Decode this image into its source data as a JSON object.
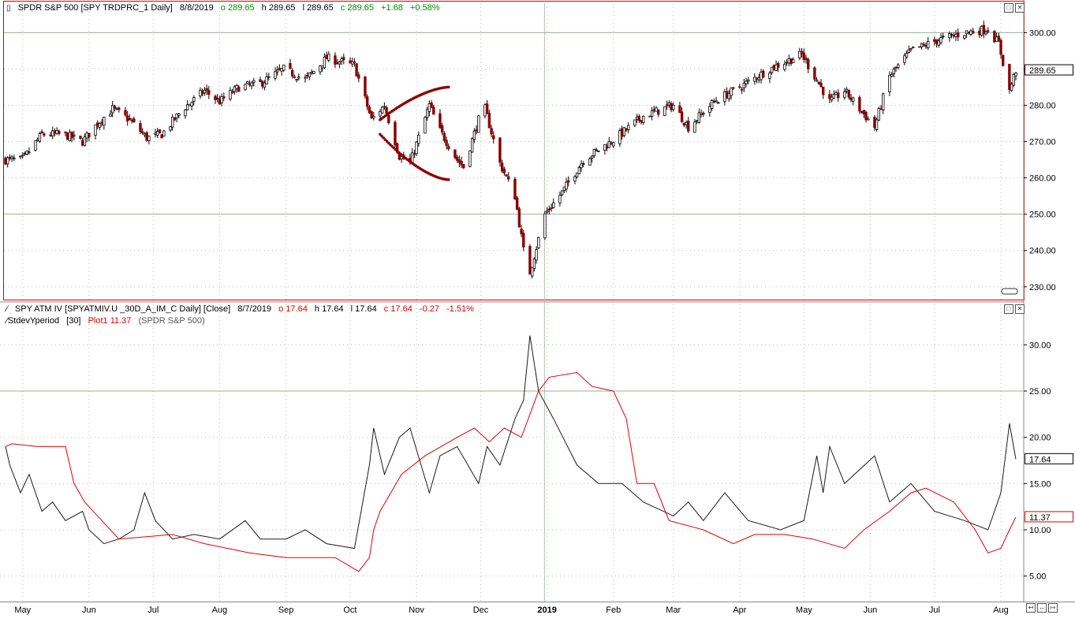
{
  "colors": {
    "up": "#000000",
    "down": "#8b0000",
    "iv_line": "#1a1a1a",
    "hv_line": "#e00000",
    "frame_active": "#d40000",
    "grid": "#bbbbbb",
    "hline": "#9ab09a",
    "green_text": "#009000",
    "red_text": "#e00000"
  },
  "price_pane": {
    "header": {
      "icon": "candlestick-icon",
      "title": "SPDR S&P 500 [SPY TRDPRC_1 Daily]",
      "date": "8/8/2019",
      "open": "o 289.65",
      "high": "h 289.65",
      "low": "l 289.65",
      "close": "c 289.65",
      "change": "+1.68",
      "pct": "+0.58%"
    },
    "last_price_label": "289.65",
    "y_ticks": [
      "300.00",
      "290.00",
      "280.00",
      "270.00",
      "260.00",
      "250.00",
      "240.00",
      "230.00"
    ]
  },
  "vol_pane": {
    "header1": {
      "icon": "line-icon",
      "title": "SPY ATM IV [SPYATMIV.U _30D_A_IM_C Daily] [Close]",
      "date": "8/7/2019",
      "open": "o 17.64",
      "high": "h 17.64",
      "low": "l 17.64",
      "close": "c 17.64",
      "change": "-0.27",
      "pct": "-1.51%"
    },
    "header2": {
      "icon": "line-icon",
      "study": "StdevYperiod",
      "param": "[30]",
      "plot": "Plot1 11.37",
      "source": "(SPDR S&P 500)"
    },
    "iv_label": "17.64",
    "hv_label": "11.37",
    "y_ticks": [
      "30.00",
      "25.00",
      "20.00",
      "15.00",
      "10.00",
      "5.00"
    ]
  },
  "x_axis": {
    "labels": [
      "May",
      "Jun",
      "Jul",
      "Aug",
      "Sep",
      "Oct",
      "Nov",
      "Dec",
      "2019",
      "Feb",
      "Mar",
      "Apr",
      "May",
      "Jun",
      "Jul",
      "Aug"
    ]
  },
  "chart_data": [
    {
      "type": "candlestick",
      "title": "SPDR S&P 500 [SPY TRDPRC_1 Daily]",
      "ylim": [
        228,
        304
      ],
      "x_range": [
        "2018-04-23",
        "2019-08-08"
      ],
      "grid": true,
      "price_path": [
        {
          "date": "2018-04-23",
          "close": 265
        },
        {
          "date": "2018-05-01",
          "close": 265
        },
        {
          "date": "2018-05-10",
          "close": 272
        },
        {
          "date": "2018-05-20",
          "close": 272
        },
        {
          "date": "2018-05-29",
          "close": 270
        },
        {
          "date": "2018-06-05",
          "close": 275
        },
        {
          "date": "2018-06-12",
          "close": 279
        },
        {
          "date": "2018-06-20",
          "close": 276
        },
        {
          "date": "2018-06-28",
          "close": 271
        },
        {
          "date": "2018-07-05",
          "close": 272
        },
        {
          "date": "2018-07-15",
          "close": 279
        },
        {
          "date": "2018-07-25",
          "close": 284
        },
        {
          "date": "2018-08-01",
          "close": 281
        },
        {
          "date": "2018-08-10",
          "close": 285
        },
        {
          "date": "2018-08-20",
          "close": 286
        },
        {
          "date": "2018-08-31",
          "close": 290
        },
        {
          "date": "2018-09-10",
          "close": 287
        },
        {
          "date": "2018-09-20",
          "close": 293
        },
        {
          "date": "2018-10-03",
          "close": 291
        },
        {
          "date": "2018-10-11",
          "close": 276
        },
        {
          "date": "2018-10-17",
          "close": 280
        },
        {
          "date": "2018-10-24",
          "close": 266
        },
        {
          "date": "2018-10-29",
          "close": 264
        },
        {
          "date": "2018-11-07",
          "close": 280
        },
        {
          "date": "2018-11-12",
          "close": 273
        },
        {
          "date": "2018-11-20",
          "close": 265
        },
        {
          "date": "2018-11-23",
          "close": 263
        },
        {
          "date": "2018-11-30",
          "close": 276
        },
        {
          "date": "2018-12-03",
          "close": 279
        },
        {
          "date": "2018-12-10",
          "close": 264
        },
        {
          "date": "2018-12-17",
          "close": 255
        },
        {
          "date": "2018-12-21",
          "close": 240
        },
        {
          "date": "2018-12-24",
          "close": 234
        },
        {
          "date": "2018-12-31",
          "close": 250
        },
        {
          "date": "2019-01-08",
          "close": 256
        },
        {
          "date": "2019-01-18",
          "close": 265
        },
        {
          "date": "2019-01-31",
          "close": 270
        },
        {
          "date": "2019-02-15",
          "close": 277
        },
        {
          "date": "2019-03-01",
          "close": 280
        },
        {
          "date": "2019-03-08",
          "close": 274
        },
        {
          "date": "2019-03-20",
          "close": 281
        },
        {
          "date": "2019-04-01",
          "close": 285
        },
        {
          "date": "2019-04-15",
          "close": 290
        },
        {
          "date": "2019-04-30",
          "close": 294
        },
        {
          "date": "2019-05-07",
          "close": 287
        },
        {
          "date": "2019-05-13",
          "close": 281
        },
        {
          "date": "2019-05-20",
          "close": 284
        },
        {
          "date": "2019-06-03",
          "close": 274
        },
        {
          "date": "2019-06-10",
          "close": 288
        },
        {
          "date": "2019-06-20",
          "close": 295
        },
        {
          "date": "2019-07-03",
          "close": 298
        },
        {
          "date": "2019-07-15",
          "close": 300
        },
        {
          "date": "2019-07-26",
          "close": 301
        },
        {
          "date": "2019-07-31",
          "close": 297
        },
        {
          "date": "2019-08-05",
          "close": 284
        },
        {
          "date": "2019-08-08",
          "close": 289.65
        }
      ],
      "annotation": {
        "type": "dotted-curves",
        "color": "#8b0000",
        "upper": [
          {
            "date": "2018-10-15",
            "value": 276
          },
          {
            "date": "2018-11-16",
            "value": 285
          }
        ],
        "lower": [
          {
            "date": "2018-10-15",
            "value": 272
          },
          {
            "date": "2018-11-16",
            "value": 259.5
          }
        ]
      }
    },
    {
      "type": "line",
      "ylim": [
        2.5,
        32.5
      ],
      "grid": true,
      "series": [
        {
          "name": "SPY ATM IV [SPYATMIV.U _30D_A_IM_C Daily] [Close]",
          "color": "#1a1a1a",
          "points": [
            {
              "date": "2018-04-23",
              "value": 19
            },
            {
              "date": "2018-04-25",
              "value": 17
            },
            {
              "date": "2018-04-30",
              "value": 14
            },
            {
              "date": "2018-05-04",
              "value": 16
            },
            {
              "date": "2018-05-10",
              "value": 12
            },
            {
              "date": "2018-05-15",
              "value": 13
            },
            {
              "date": "2018-05-21",
              "value": 11
            },
            {
              "date": "2018-05-29",
              "value": 12
            },
            {
              "date": "2018-06-01",
              "value": 10
            },
            {
              "date": "2018-06-08",
              "value": 8.5
            },
            {
              "date": "2018-06-15",
              "value": 9
            },
            {
              "date": "2018-06-22",
              "value": 10
            },
            {
              "date": "2018-06-27",
              "value": 14
            },
            {
              "date": "2018-07-02",
              "value": 11
            },
            {
              "date": "2018-07-10",
              "value": 9
            },
            {
              "date": "2018-07-20",
              "value": 9.5
            },
            {
              "date": "2018-08-01",
              "value": 9
            },
            {
              "date": "2018-08-13",
              "value": 11
            },
            {
              "date": "2018-08-20",
              "value": 9
            },
            {
              "date": "2018-09-01",
              "value": 9
            },
            {
              "date": "2018-09-10",
              "value": 10
            },
            {
              "date": "2018-09-20",
              "value": 8.5
            },
            {
              "date": "2018-10-03",
              "value": 8
            },
            {
              "date": "2018-10-10",
              "value": 17
            },
            {
              "date": "2018-10-12",
              "value": 21
            },
            {
              "date": "2018-10-17",
              "value": 16
            },
            {
              "date": "2018-10-24",
              "value": 20
            },
            {
              "date": "2018-10-29",
              "value": 21
            },
            {
              "date": "2018-11-07",
              "value": 14
            },
            {
              "date": "2018-11-12",
              "value": 18
            },
            {
              "date": "2018-11-20",
              "value": 19
            },
            {
              "date": "2018-11-30",
              "value": 15
            },
            {
              "date": "2018-12-04",
              "value": 19
            },
            {
              "date": "2018-12-10",
              "value": 17
            },
            {
              "date": "2018-12-17",
              "value": 22
            },
            {
              "date": "2018-12-21",
              "value": 24
            },
            {
              "date": "2018-12-24",
              "value": 31
            },
            {
              "date": "2018-12-28",
              "value": 25
            },
            {
              "date": "2019-01-04",
              "value": 22
            },
            {
              "date": "2019-01-15",
              "value": 17
            },
            {
              "date": "2019-01-25",
              "value": 15
            },
            {
              "date": "2019-02-05",
              "value": 15
            },
            {
              "date": "2019-02-15",
              "value": 13
            },
            {
              "date": "2019-03-01",
              "value": 11.5
            },
            {
              "date": "2019-03-08",
              "value": 13
            },
            {
              "date": "2019-03-15",
              "value": 11
            },
            {
              "date": "2019-03-25",
              "value": 14
            },
            {
              "date": "2019-04-05",
              "value": 11
            },
            {
              "date": "2019-04-20",
              "value": 10
            },
            {
              "date": "2019-05-01",
              "value": 11
            },
            {
              "date": "2019-05-07",
              "value": 18
            },
            {
              "date": "2019-05-10",
              "value": 14
            },
            {
              "date": "2019-05-13",
              "value": 19
            },
            {
              "date": "2019-05-20",
              "value": 15
            },
            {
              "date": "2019-06-03",
              "value": 18
            },
            {
              "date": "2019-06-10",
              "value": 13
            },
            {
              "date": "2019-06-20",
              "value": 15
            },
            {
              "date": "2019-07-01",
              "value": 12
            },
            {
              "date": "2019-07-15",
              "value": 11
            },
            {
              "date": "2019-07-26",
              "value": 10
            },
            {
              "date": "2019-08-01",
              "value": 14
            },
            {
              "date": "2019-08-05",
              "value": 21.5
            },
            {
              "date": "2019-08-08",
              "value": 17.64
            }
          ]
        },
        {
          "name": "StdevYperiod [30] Plot1",
          "color": "#e00000",
          "points": [
            {
              "date": "2018-04-23",
              "value": 19
            },
            {
              "date": "2018-04-26",
              "value": 19.3
            },
            {
              "date": "2018-05-08",
              "value": 19
            },
            {
              "date": "2018-05-21",
              "value": 19
            },
            {
              "date": "2018-05-25",
              "value": 15
            },
            {
              "date": "2018-05-30",
              "value": 13
            },
            {
              "date": "2018-06-15",
              "value": 9
            },
            {
              "date": "2018-07-10",
              "value": 9.5
            },
            {
              "date": "2018-07-25",
              "value": 8.5
            },
            {
              "date": "2018-08-15",
              "value": 7.5
            },
            {
              "date": "2018-09-01",
              "value": 7
            },
            {
              "date": "2018-09-24",
              "value": 7
            },
            {
              "date": "2018-10-05",
              "value": 5.5
            },
            {
              "date": "2018-10-10",
              "value": 7
            },
            {
              "date": "2018-10-12",
              "value": 10
            },
            {
              "date": "2018-10-15",
              "value": 12
            },
            {
              "date": "2018-10-25",
              "value": 16
            },
            {
              "date": "2018-11-05",
              "value": 18
            },
            {
              "date": "2018-11-20",
              "value": 20
            },
            {
              "date": "2018-11-28",
              "value": 21
            },
            {
              "date": "2018-12-05",
              "value": 19.5
            },
            {
              "date": "2018-12-12",
              "value": 21
            },
            {
              "date": "2018-12-20",
              "value": 20
            },
            {
              "date": "2018-12-28",
              "value": 25
            },
            {
              "date": "2019-01-02",
              "value": 26.5
            },
            {
              "date": "2019-01-15",
              "value": 27
            },
            {
              "date": "2019-01-22",
              "value": 25.5
            },
            {
              "date": "2019-02-01",
              "value": 25
            },
            {
              "date": "2019-02-07",
              "value": 22
            },
            {
              "date": "2019-02-12",
              "value": 15
            },
            {
              "date": "2019-02-20",
              "value": 15
            },
            {
              "date": "2019-02-27",
              "value": 11
            },
            {
              "date": "2019-03-15",
              "value": 10
            },
            {
              "date": "2019-03-29",
              "value": 8.5
            },
            {
              "date": "2019-04-08",
              "value": 9.5
            },
            {
              "date": "2019-04-22",
              "value": 9.5
            },
            {
              "date": "2019-05-05",
              "value": 9
            },
            {
              "date": "2019-05-20",
              "value": 8
            },
            {
              "date": "2019-05-29",
              "value": 10
            },
            {
              "date": "2019-06-10",
              "value": 12
            },
            {
              "date": "2019-06-20",
              "value": 14
            },
            {
              "date": "2019-06-27",
              "value": 14.5
            },
            {
              "date": "2019-07-10",
              "value": 13
            },
            {
              "date": "2019-07-20",
              "value": 10
            },
            {
              "date": "2019-07-26",
              "value": 7.5
            },
            {
              "date": "2019-08-01",
              "value": 8
            },
            {
              "date": "2019-08-05",
              "value": 10
            },
            {
              "date": "2019-08-08",
              "value": 11.37
            }
          ]
        }
      ]
    }
  ]
}
